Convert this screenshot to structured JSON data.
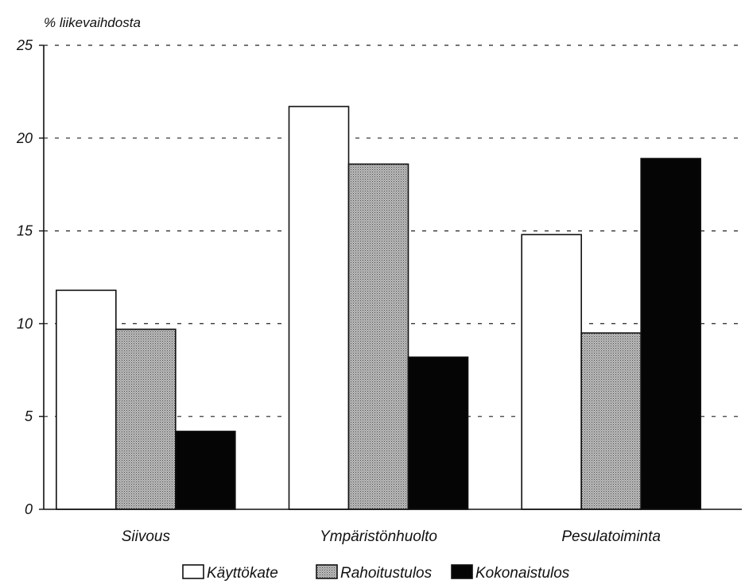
{
  "chart_data": {
    "type": "bar",
    "ylabel": "% liikevaihdosta",
    "ylim": [
      0,
      25
    ],
    "yticks": [
      0,
      5,
      10,
      15,
      20,
      25
    ],
    "grid": "dashed horizontal",
    "legend_placement": "bottom",
    "categories": [
      "Siivous",
      "Ympäristönhuolto",
      "Pesulatoiminta"
    ],
    "series": [
      {
        "name": "Käyttökate",
        "fill": "white",
        "values": [
          11.8,
          21.7,
          14.8
        ]
      },
      {
        "name": "Rahoitustulos",
        "fill": "gray-dotted",
        "values": [
          9.7,
          18.6,
          9.5
        ]
      },
      {
        "name": "Kokonaistulos",
        "fill": "black",
        "values": [
          4.2,
          8.2,
          18.9
        ]
      }
    ]
  },
  "colors": {
    "axis": "#111111",
    "white_fill": "#ffffff",
    "gray_fill": "#a8a8a8",
    "black_fill": "#050505"
  }
}
